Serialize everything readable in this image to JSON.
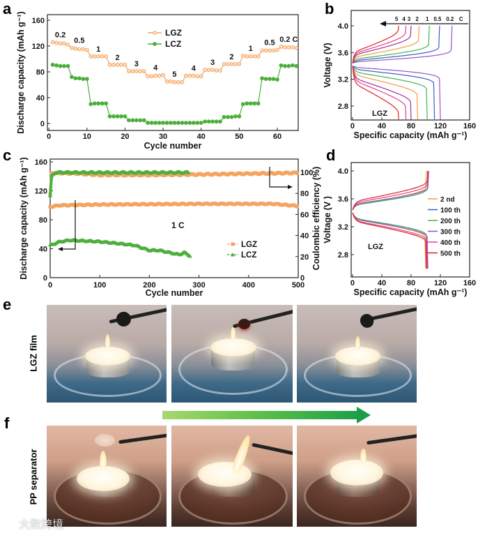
{
  "panels": {
    "a": "a",
    "b": "b",
    "c": "c",
    "d": "d",
    "e": "e",
    "f": "f"
  },
  "photo_rows": {
    "e_label": "LGZ film",
    "f_label": "PP separator"
  },
  "watermark": "大数跨境",
  "colors": {
    "lgz": "#f4a460",
    "lcz": "#4caf3c",
    "arrow_start": "#a8d870",
    "arrow_end": "#1a9e48"
  },
  "chart_data": [
    {
      "id": "a",
      "type": "line",
      "xlabel": "Cycle number",
      "ylabel": "Discharge capacity (mAh g⁻¹)",
      "xlim": [
        -0.4,
        65.5
      ],
      "ylim": [
        -10.8,
        168.6
      ],
      "xticks": [
        "0",
        "10",
        "20",
        "30",
        "40",
        "50",
        "60"
      ],
      "yticks": [
        "0",
        "40",
        "80",
        "120",
        "160"
      ],
      "legend": [
        "LGZ",
        "LCZ"
      ],
      "legend_position": "top-center",
      "rate_labels": [
        "0.2",
        "0.5",
        "1",
        "2",
        "3",
        "4",
        "5",
        "4",
        "3",
        "2",
        "1",
        "0.5",
        "0.2 C"
      ],
      "series": [
        {
          "name": "LGZ",
          "color": "#f4a460",
          "marker": "open-circle",
          "values": [
            126,
            125,
            124,
            124,
            122,
            117,
            116,
            115,
            115,
            114,
            104,
            104,
            104,
            104,
            104,
            91,
            91,
            91,
            91,
            91,
            81,
            81,
            81,
            81,
            81,
            73,
            73,
            74,
            74,
            75,
            65,
            65,
            64,
            64,
            64,
            74,
            74,
            74,
            73,
            73,
            83,
            83,
            83,
            82,
            82,
            92,
            92,
            92,
            92,
            92,
            105,
            104,
            104,
            104,
            104,
            113,
            113,
            113,
            113,
            114,
            119,
            118,
            118,
            118,
            117
          ]
        },
        {
          "name": "LCZ",
          "color": "#4caf3c",
          "marker": "filled-circle",
          "values": [
            91,
            90,
            89,
            89,
            89,
            72,
            70,
            70,
            69,
            69,
            30,
            31,
            31,
            31,
            31,
            11,
            11,
            11,
            11,
            11,
            5,
            5,
            5,
            5,
            5,
            1,
            1,
            1,
            1,
            1,
            1,
            1,
            1,
            1,
            1,
            1,
            1,
            1,
            1,
            1,
            3,
            3,
            3,
            3,
            3,
            10,
            10,
            10,
            11,
            11,
            30,
            31,
            31,
            31,
            31,
            70,
            69,
            69,
            69,
            68,
            90,
            89,
            89,
            90,
            89
          ]
        }
      ]
    },
    {
      "id": "b",
      "type": "line",
      "xlabel": "Specific capacity (mAh g⁻¹)",
      "ylabel": "Voltage (V)",
      "xlim": [
        -1.9,
        160
      ],
      "ylim": [
        2.59,
        4.23
      ],
      "xticks": [
        "0",
        "40",
        "80",
        "120",
        "160"
      ],
      "yticks": [
        "2.8",
        "3.2",
        "3.6",
        "4.0"
      ],
      "annotation": "LGZ",
      "arrow_label_suffix": "C",
      "series": [
        {
          "name": "0.2",
          "color": "#9b4fc8",
          "charge_capacity": 136,
          "discharge_capacity": 120,
          "charge_plateau": 3.46,
          "discharge_plateau": 3.38
        },
        {
          "name": "0.5",
          "color": "#3b5cc4",
          "charge_capacity": 119,
          "discharge_capacity": 112,
          "charge_plateau": 3.48,
          "discharge_plateau": 3.35
        },
        {
          "name": "1",
          "color": "#3cb84a",
          "charge_capacity": 105,
          "discharge_capacity": 102,
          "charge_plateau": 3.5,
          "discharge_plateau": 3.31
        },
        {
          "name": "2",
          "color": "#f39a3c",
          "charge_capacity": 91,
          "discharge_capacity": 89,
          "charge_plateau": 3.53,
          "discharge_plateau": 3.27
        },
        {
          "name": "3",
          "color": "#a0309a",
          "charge_capacity": 80,
          "discharge_capacity": 80,
          "charge_plateau": 3.56,
          "discharge_plateau": 3.22
        },
        {
          "name": "4",
          "color": "#e0408a",
          "charge_capacity": 73,
          "discharge_capacity": 73,
          "charge_plateau": 3.58,
          "discharge_plateau": 3.19
        },
        {
          "name": "5",
          "color": "#e02020",
          "charge_capacity": 63,
          "discharge_capacity": 63,
          "charge_plateau": 3.6,
          "discharge_plateau": 3.15
        }
      ]
    },
    {
      "id": "c",
      "type": "scatter",
      "xlabel": "Cycle number",
      "ylabel": "Discharge capacity (mAh g⁻¹)",
      "ylabel_right": "Coulombic efficiency (%)",
      "xlim": [
        0,
        500
      ],
      "ylim": [
        0,
        163.9
      ],
      "ylim_right": [
        0,
        112.6
      ],
      "xticks": [
        "0",
        "100",
        "200",
        "300",
        "400",
        "500"
      ],
      "yticks": [
        "0",
        "40",
        "80",
        "120",
        "160"
      ],
      "yticks_right": [
        "0",
        "20",
        "40",
        "60",
        "80",
        "100"
      ],
      "annotation": "1 C",
      "legend": [
        "LGZ",
        "LCZ"
      ],
      "legend_position": "lower-right",
      "series": [
        {
          "name": "LGZ",
          "kind": "capacity",
          "axis": "left",
          "color": "#f4a460",
          "marker": "square",
          "cycles": [
            0,
            20,
            100,
            300,
            450,
            500
          ],
          "values": [
            98,
            100,
            101,
            102,
            102,
            99
          ]
        },
        {
          "name": "LGZ",
          "kind": "coulombic_efficiency",
          "axis": "right",
          "color": "#f4a460",
          "marker": "square",
          "cycles": [
            0,
            3,
            50,
            100,
            200,
            300,
            500
          ],
          "values": [
            78,
            99.5,
            99,
            97.5,
            97.5,
            98,
            99.5
          ]
        },
        {
          "name": "LCZ",
          "kind": "capacity",
          "axis": "left",
          "color": "#4caf3c",
          "marker": "triangle",
          "cycles": [
            0,
            20,
            40,
            100,
            130,
            170,
            200,
            220,
            260,
            270,
            283
          ],
          "values": [
            45,
            50,
            52,
            50,
            48,
            45,
            38,
            38,
            32,
            35,
            30
          ]
        },
        {
          "name": "LCZ",
          "kind": "coulombic_efficiency",
          "axis": "right",
          "color": "#4caf3c",
          "marker": "triangle",
          "cycles": [
            0,
            3,
            10,
            280
          ],
          "values": [
            78,
            96,
            100,
            100
          ]
        }
      ]
    },
    {
      "id": "d",
      "type": "line",
      "xlabel": "Specific capacity (mAh g⁻¹)",
      "ylabel": "Voltage (V )",
      "xlim": [
        -1.9,
        160
      ],
      "ylim": [
        2.48,
        4.12
      ],
      "xticks": [
        "0",
        "40",
        "80",
        "120",
        "160"
      ],
      "yticks": [
        "2.8",
        "3.2",
        "3.6",
        "4.0"
      ],
      "annotation": "LGZ",
      "legend_position": "right",
      "series": [
        {
          "name": "2 nd",
          "color": "#f39a3c",
          "charge_capacity": 101,
          "discharge_capacity": 100,
          "charge_plateau": 3.52,
          "discharge_plateau": 3.31
        },
        {
          "name": "100 th",
          "color": "#3b5cc4",
          "charge_capacity": 103,
          "discharge_capacity": 102,
          "charge_plateau": 3.51,
          "discharge_plateau": 3.32
        },
        {
          "name": "200 th",
          "color": "#3cb84a",
          "charge_capacity": 103,
          "discharge_capacity": 102,
          "charge_plateau": 3.51,
          "discharge_plateau": 3.32
        },
        {
          "name": "300 th",
          "color": "#9b4fc8",
          "charge_capacity": 104,
          "discharge_capacity": 103,
          "charge_plateau": 3.52,
          "discharge_plateau": 3.31
        },
        {
          "name": "400 th",
          "color": "#e0408a",
          "charge_capacity": 103,
          "discharge_capacity": 102,
          "charge_plateau": 3.54,
          "discharge_plateau": 3.29
        },
        {
          "name": "500 th",
          "color": "#e02020",
          "charge_capacity": 103,
          "discharge_capacity": 101,
          "charge_plateau": 3.56,
          "discharge_plateau": 3.28
        }
      ]
    }
  ]
}
